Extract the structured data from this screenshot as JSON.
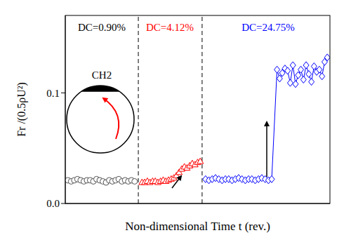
{
  "chart_data": {
    "type": "scatter",
    "y_label": "Fr /(0.5ρU²)",
    "x_label": "Non-dimensional Time t (rev.)",
    "xlim": [
      0,
      100
    ],
    "ylim": [
      0,
      0.17
    ],
    "yticks": [
      {
        "value": 0,
        "label": "0.0"
      },
      {
        "value": 0.1,
        "label": "0.1"
      }
    ],
    "tick_labels": "y",
    "dividers": [
      27.6,
      51.7
    ],
    "annotations": [
      {
        "text": "DC=0.90%",
        "color": "#000000"
      },
      {
        "text": "DC=4.12%",
        "color": "#ff0000"
      },
      {
        "text": "DC=24.75%",
        "color": "#0000ff"
      }
    ],
    "inset_label": "CH2",
    "series": [
      {
        "color": "#555555",
        "marker": "circle",
        "line_style": "solid",
        "x": [
          1,
          2.2,
          3.4,
          4.6,
          5.8,
          7,
          8.2,
          9.4,
          10.6,
          11.8,
          13,
          14.2,
          15.4,
          16.6,
          17.8,
          19,
          20.2,
          21.4,
          22.6,
          23.8,
          25,
          26.2
        ],
        "values": [
          0.021,
          0.02,
          0.021,
          0.022,
          0.021,
          0.02,
          0.021,
          0.021,
          0.02,
          0.022,
          0.021,
          0.02,
          0.019,
          0.021,
          0.02,
          0.021,
          0.022,
          0.02,
          0.021,
          0.02,
          0.021,
          0.02
        ]
      },
      {
        "color": "#ff0000",
        "marker": "triangle",
        "line_style": "solid",
        "x": [
          29,
          30,
          31,
          32,
          33,
          34,
          35,
          36,
          37,
          38,
          39,
          40,
          41,
          42,
          43,
          44,
          45,
          46,
          47,
          48,
          49,
          50,
          51
        ],
        "values": [
          0.019,
          0.019,
          0.02,
          0.019,
          0.02,
          0.02,
          0.019,
          0.02,
          0.021,
          0.02,
          0.021,
          0.022,
          0.023,
          0.025,
          0.028,
          0.031,
          0.033,
          0.032,
          0.034,
          0.036,
          0.035,
          0.037,
          0.038
        ]
      },
      {
        "color": "#0000ff",
        "marker": "diamond",
        "line_style": "solid",
        "x": [
          53,
          54.25,
          55.5,
          56.75,
          58,
          59.25,
          60.5,
          61.75,
          63,
          64.25,
          65.5,
          66.75,
          68,
          69.25,
          70.5,
          71.75,
          73,
          74.25,
          75.5,
          76.75,
          78,
          80,
          81,
          82,
          83,
          84,
          85,
          86,
          87,
          88,
          89,
          90,
          91,
          92,
          93,
          94,
          95,
          96,
          97,
          98,
          99
        ],
        "values": [
          0.022,
          0.021,
          0.022,
          0.023,
          0.022,
          0.021,
          0.022,
          0.022,
          0.021,
          0.022,
          0.023,
          0.022,
          0.021,
          0.022,
          0.022,
          0.021,
          0.022,
          0.023,
          0.022,
          0.021,
          0.022,
          0.121,
          0.113,
          0.118,
          0.122,
          0.12,
          0.109,
          0.125,
          0.108,
          0.116,
          0.121,
          0.112,
          0.125,
          0.117,
          0.11,
          0.124,
          0.119,
          0.121,
          0.115,
          0.128,
          0.132
        ]
      }
    ]
  }
}
